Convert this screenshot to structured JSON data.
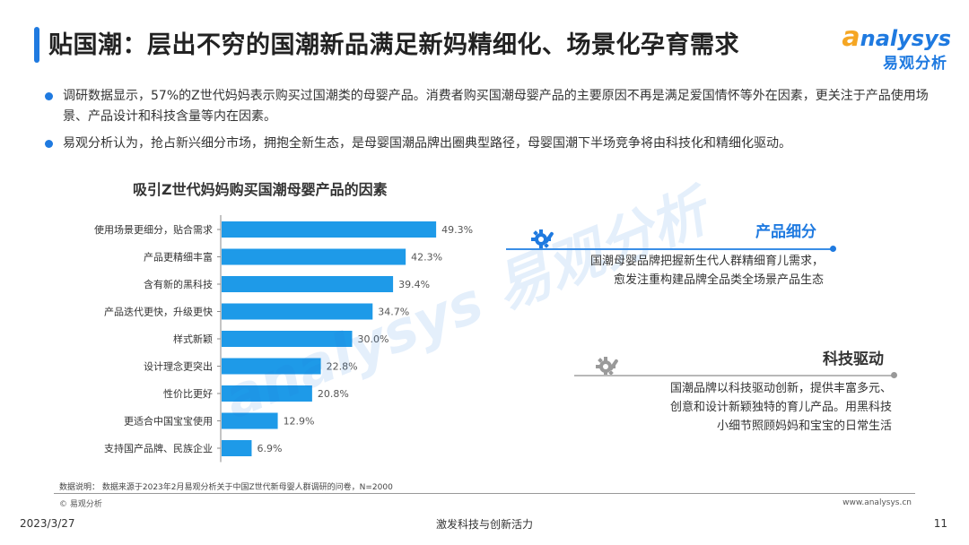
{
  "header": {
    "title": "贴国潮：层出不穷的国潮新品满足新妈精细化、场景化孕育需求",
    "logo_en_first": "a",
    "logo_en_rest": "nalysys",
    "logo_cn": "易观分析"
  },
  "bullets": [
    "调研数据显示，57%的Z世代妈妈表示购买过国潮类的母婴产品。消费者购买国潮母婴产品的主要原因不再是满足爱国情怀等外在因素，更关注于产品使用场景、产品设计和科技含量等内在因素。",
    "易观分析认为，抢占新兴细分市场，拥抱全新生态，是母婴国潮品牌出圈典型路径，母婴国潮下半场竞争将由科技化和精细化驱动。"
  ],
  "chart_data": {
    "type": "bar",
    "orientation": "horizontal",
    "title": "吸引Z世代妈妈购买国潮母婴产品的因素",
    "categories": [
      "使用场景更细分，贴合需求",
      "产品更精细丰富",
      "含有新的黑科技",
      "产品迭代更快，升级更快",
      "样式新颖",
      "设计理念更突出",
      "性价比更好",
      "更适合中国宝宝使用",
      "支持国产品牌、民族企业"
    ],
    "values": [
      49.3,
      42.3,
      39.4,
      34.7,
      30.0,
      22.8,
      20.8,
      12.9,
      6.9
    ],
    "value_labels": [
      "49.3%",
      "42.3%",
      "39.4%",
      "34.7%",
      "30.0%",
      "22.8%",
      "20.8%",
      "12.9%",
      "6.9%"
    ],
    "xlim": [
      0,
      60
    ],
    "bar_color": "#1e9ae8",
    "grid": false,
    "legend": "none"
  },
  "watermark": "analysys 易观分析",
  "side_panels": [
    {
      "title": "产品细分",
      "text_lines": [
        "国潮母婴品牌把握新生代人群精细育儿需求，",
        "愈发注重构建品牌全品类全场景产品生态"
      ],
      "icon": "gear-wrench-icon"
    },
    {
      "title": "科技驱动",
      "text_lines": [
        "国潮品牌以科技驱动创新，提供丰富多元、",
        "创意和设计新颖独特的育儿产品。用黑科技",
        "小细节照顾妈妈和宝宝的日常生活"
      ],
      "icon": "gear-wrench-icon"
    }
  ],
  "footer": {
    "note": "数据说明：  数据来源于2023年2月易观分析关于中国Z世代新母婴人群调研的问卷，N=2000",
    "copyright": "© 易观分析",
    "website": "www.analysys.cn",
    "date": "2023/3/27",
    "slogan": "激发科技与创新活力",
    "page": "11"
  },
  "colors": {
    "accent": "#1f7ae0",
    "bar": "#1e9ae8",
    "logo_orange": "#f5a623"
  }
}
